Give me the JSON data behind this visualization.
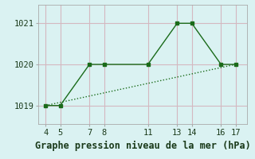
{
  "line1_x": [
    4,
    5,
    7,
    8,
    11,
    13,
    14,
    16,
    17
  ],
  "line1_y": [
    1019.0,
    1019.0,
    1020.0,
    1020.0,
    1020.0,
    1021.0,
    1021.0,
    1020.0,
    1020.0
  ],
  "line2_x": [
    4,
    17
  ],
  "line2_y": [
    1019.0,
    1020.0
  ],
  "line_color": "#1a6b1a",
  "marker": "s",
  "markersize": 3,
  "bg_color": "#daf2f2",
  "grid_color": "#d4b8c0",
  "xlabel": "Graphe pression niveau de la mer (hPa)",
  "xticks": [
    4,
    5,
    7,
    8,
    11,
    13,
    14,
    16,
    17
  ],
  "yticks": [
    1019,
    1020,
    1021
  ],
  "ylim": [
    1018.55,
    1021.45
  ],
  "xlim": [
    3.5,
    17.8
  ],
  "xlabel_fontsize": 8.5,
  "tick_fontsize": 7.5
}
